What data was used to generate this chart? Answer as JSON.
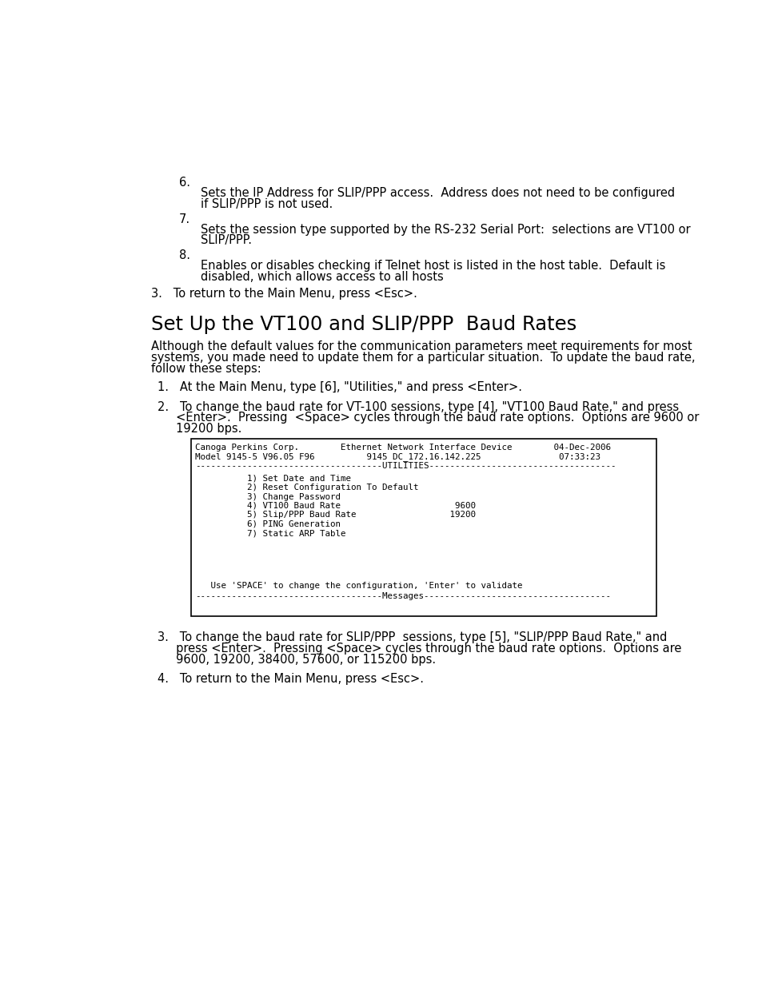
{
  "bg_color": "#ffffff",
  "text_color": "#000000",
  "page_width": 9.54,
  "page_height": 12.35,
  "body_font_size": 10.5,
  "title_font_size": 17.5,
  "mono_font_size": 7.8,
  "section6_number": "6.",
  "section6_text_line1": "Sets the IP Address for SLIP/PPP access.  Address does not need to be configured",
  "section6_text_line2": "if SLIP/PPP is not used.",
  "section7_number": "7.",
  "section7_text_line1": "Sets the session type supported by the RS-232 Serial Port:  selections are VT100 or",
  "section7_text_line2": "SLIP/PPP.",
  "section8_number": "8.",
  "section8_text_line1": "Enables or disables checking if Telnet host is listed in the host table.  Default is",
  "section8_text_line2": "disabled, which allows access to all hosts",
  "step3_text": "3.   To return to the Main Menu, press <Esc>.",
  "section_title": "Set Up the VT100 and SLIP/PPP  Baud Rates",
  "intro_line1": "Although the default values for the communication parameters meet requirements for most",
  "intro_line2": "systems, you made need to update them for a particular situation.  To update the baud rate,",
  "intro_line3": "follow these steps:",
  "list1_text": "1.   At the Main Menu, type [6], \"Utilities,\" and press <Enter>.",
  "list2_line1": "2.   To change the baud rate for VT-100 sessions, type [4], \"VT100 Baud Rate,\" and press",
  "list2_line2": "     <Enter>.  Pressing  <Space> cycles through the baud rate options.  Options are 9600 or",
  "list2_line3": "     19200 bps.",
  "terminal_header1": "Canoga Perkins Corp.        Ethernet Network Interface Device        04-Dec-2006",
  "terminal_header2": "Model 9145-5 V96.05 F96          9145 DC_172.16.142.225               07:33:23",
  "terminal_divider1": "------------------------------------UTILITIES------------------------------------",
  "terminal_menu1": "          1) Set Date and Time",
  "terminal_menu2": "          2) Reset Configuration To Default",
  "terminal_menu3": "          3) Change Password",
  "terminal_menu4": "          4) VT100 Baud Rate                      9600",
  "terminal_menu5": "          5) Slip/PPP Baud Rate                  19200",
  "terminal_menu6": "          6) PING Generation",
  "terminal_menu7": "          7) Static ARP Table",
  "terminal_footer1": "   Use 'SPACE' to change the configuration, 'Enter' to validate",
  "terminal_footer2": "------------------------------------Messages------------------------------------",
  "list3_line1": "3.   To change the baud rate for SLIP/PPP  sessions, type [5], \"SLIP/PPP Baud Rate,\" and",
  "list3_line2": "     press <Enter>.  Pressing <Space> cycles through the baud rate options.  Options are",
  "list3_line3": "     9600, 19200, 38400, 57600, or 115200 bps.",
  "list4_text": "4.   To return to the Main Menu, press <Esc>."
}
